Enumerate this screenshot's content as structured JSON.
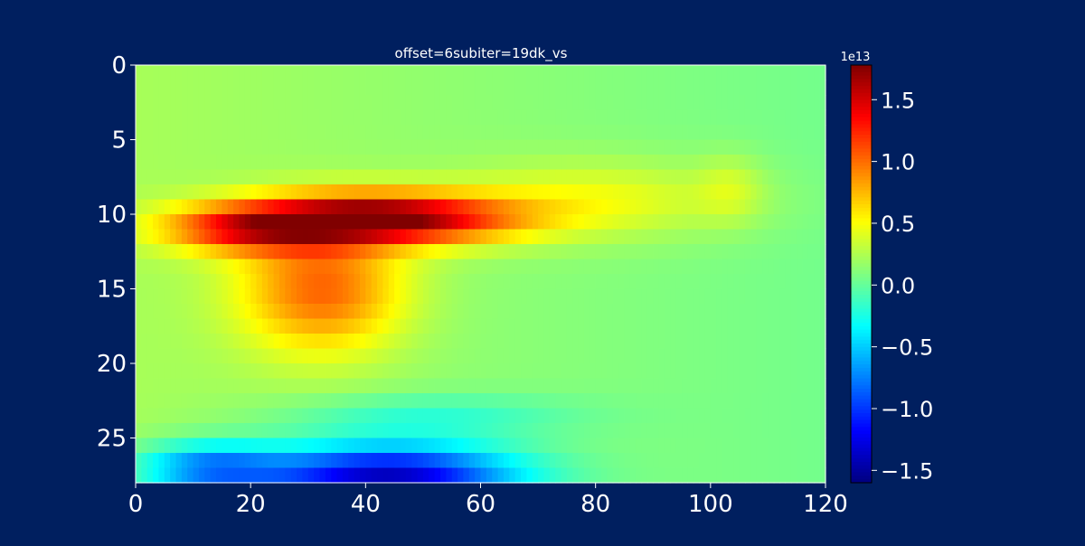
{
  "chart_data": {
    "type": "heatmap",
    "title": "offset=6subiter=19dk_vs",
    "xlabel": "",
    "ylabel": "",
    "xlim": [
      0,
      120
    ],
    "ylim": [
      28,
      0
    ],
    "x_ticks": [
      0,
      20,
      40,
      60,
      80,
      100,
      120
    ],
    "x_tick_labels": [
      "0",
      "20",
      "40",
      "60",
      "80",
      "100",
      "120"
    ],
    "y_ticks": [
      0,
      5,
      10,
      15,
      20,
      25
    ],
    "y_tick_labels": [
      "0",
      "5",
      "10",
      "15",
      "20",
      "25"
    ],
    "rows": 28,
    "cols": 120,
    "colormap": "jet",
    "colorbar": {
      "min": -1.6,
      "max": 1.78,
      "exponent_label": "1e13",
      "ticks": [
        -1.5,
        -1.0,
        -0.5,
        0.0,
        0.5,
        1.0,
        1.5
      ],
      "tick_labels": [
        "−1.5",
        "−1.0",
        "−0.5",
        "0.0",
        "0.5",
        "1.0",
        "1.5"
      ]
    },
    "features": [
      {
        "name": "positive band",
        "row_center": 9.8,
        "col_center": 42,
        "row_sigma": 1.2,
        "col_sigma": 16,
        "peak": 1.68
      },
      {
        "name": "positive band left",
        "row_center": 10.5,
        "col_center": 18,
        "row_sigma": 1.1,
        "col_sigma": 10,
        "peak": 0.9
      },
      {
        "name": "positive tail",
        "row_center": 8.5,
        "col_center": 80,
        "row_sigma": 1.8,
        "col_sigma": 18,
        "peak": 0.35
      },
      {
        "name": "positive lower lobe",
        "row_center": 14.5,
        "col_center": 32,
        "row_sigma": 3.0,
        "col_sigma": 10,
        "peak": 0.85
      },
      {
        "name": "positive right spot",
        "row_center": 7.8,
        "col_center": 103,
        "row_sigma": 1.6,
        "col_sigma": 4,
        "peak": 0.2
      },
      {
        "name": "negative band",
        "row_center": 27.2,
        "col_center": 43,
        "row_sigma": 1.6,
        "col_sigma": 16,
        "peak": -1.55
      },
      {
        "name": "negative band left",
        "row_center": 26.5,
        "col_center": 12,
        "row_sigma": 1.2,
        "col_sigma": 9,
        "peak": -0.85
      },
      {
        "name": "negative upper",
        "row_center": 23.0,
        "col_center": 50,
        "row_sigma": 1.0,
        "col_sigma": 18,
        "peak": -0.3
      }
    ],
    "background": {
      "left": 0.22,
      "right": 0.05
    }
  }
}
